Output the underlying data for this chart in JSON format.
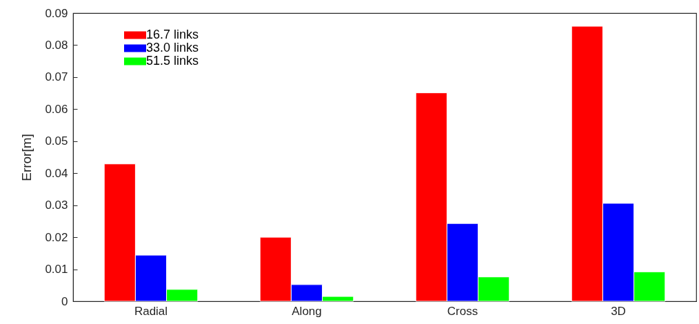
{
  "chart_data": {
    "type": "bar",
    "ylabel": "Error[m]",
    "categories": [
      "Radial",
      "Along",
      "Cross",
      "3D"
    ],
    "series": [
      {
        "name": "16.7 links",
        "color": "#ff0000",
        "values": [
          0.0429,
          0.02,
          0.0651,
          0.0859
        ]
      },
      {
        "name": "33.0 links",
        "color": "#0000ff",
        "values": [
          0.0144,
          0.0052,
          0.0243,
          0.0306
        ]
      },
      {
        "name": "51.5 links",
        "color": "#00ff00",
        "values": [
          0.0037,
          0.0015,
          0.0076,
          0.0092
        ]
      }
    ],
    "ylim": [
      0,
      0.09
    ],
    "yticks": [
      0,
      0.01,
      0.02,
      0.03,
      0.04,
      0.05,
      0.06,
      0.07,
      0.08,
      0.09
    ],
    "grid": false,
    "legend": "top left"
  }
}
